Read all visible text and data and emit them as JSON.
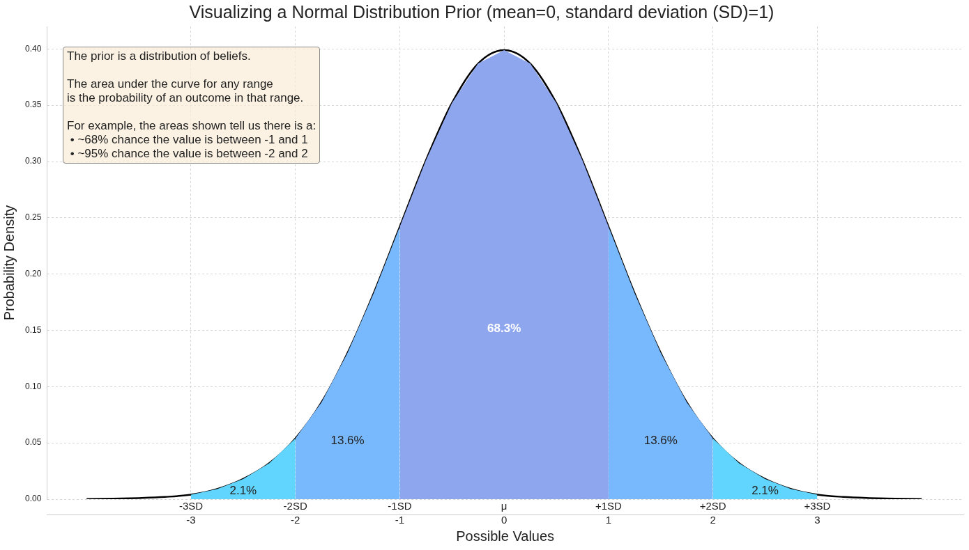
{
  "chart_data": {
    "type": "area",
    "title": "Visualizing a Normal Distribution Prior (mean=0, standard deviation (SD)=1)",
    "xlabel": "Possible Values",
    "ylabel": "Probability Density",
    "xlim": [
      -4.38,
      4.4
    ],
    "xticks": [
      -3,
      -2,
      -1,
      0,
      1,
      2,
      3
    ],
    "x2lim": [
      -4.38,
      4.4
    ],
    "x2ticks": [
      {
        "value": -3,
        "label": "-3SD"
      },
      {
        "value": -2,
        "label": "-2SD"
      },
      {
        "value": -1,
        "label": "-1SD"
      },
      {
        "value": 0,
        "label": "μ"
      },
      {
        "value": 1,
        "label": "+1SD"
      },
      {
        "value": 2,
        "label": "+2SD"
      },
      {
        "value": 3,
        "label": "+3SD"
      }
    ],
    "ylim": [
      0,
      0.42
    ],
    "yticks": [
      {
        "value": 0,
        "label": "0.00"
      },
      {
        "value": 0.05,
        "label": "0.05"
      },
      {
        "value": 0.1,
        "label": "0.10"
      },
      {
        "value": 0.15,
        "label": "0.15"
      },
      {
        "value": 0.2,
        "label": "0.20"
      },
      {
        "value": 0.25,
        "label": "0.25"
      },
      {
        "value": 0.3,
        "label": "0.30"
      },
      {
        "value": 0.35,
        "label": "0.35"
      },
      {
        "value": 0.4,
        "label": "0.40"
      }
    ],
    "grid": true,
    "series": [
      {
        "color": "#62d5fe",
        "x": [
          -3,
          -2.75,
          -2.5,
          -2.25,
          -2
        ],
        "values": [
          0.004,
          0.009,
          0.018,
          0.032,
          0.054
        ]
      },
      {
        "color": "#62d5fe",
        "x": [
          2,
          2.25,
          2.5,
          2.75,
          3
        ],
        "values": [
          0.054,
          0.032,
          0.018,
          0.009,
          0.004
        ]
      },
      {
        "color": "#78b9fe",
        "x": [
          -2,
          -1.75,
          -1.5,
          -1.25,
          -1
        ],
        "values": [
          0.054,
          0.086,
          0.13,
          0.183,
          0.242
        ]
      },
      {
        "color": "#78b9fe",
        "x": [
          1,
          1.25,
          1.5,
          1.75,
          2
        ],
        "values": [
          0.242,
          0.183,
          0.13,
          0.086,
          0.054
        ]
      },
      {
        "color": "#8ea6ee",
        "x": [
          -1,
          -0.75,
          -0.5,
          -0.25,
          0,
          0.25,
          0.5,
          0.75,
          1
        ],
        "values": [
          0.242,
          0.301,
          0.352,
          0.387,
          0.399,
          0.387,
          0.352,
          0.301,
          0.242
        ]
      },
      {
        "type": "line",
        "color": "#000000",
        "x": [
          -4,
          -3.75,
          -3.5,
          -3.25,
          -3,
          -2.75,
          -2.5,
          -2.25,
          -2,
          -1.75,
          -1.5,
          -1.25,
          -1,
          -0.75,
          -0.5,
          -0.25,
          0,
          0.25,
          0.5,
          0.75,
          1,
          1.25,
          1.5,
          1.75,
          2,
          2.25,
          2.5,
          2.75,
          3,
          3.25,
          3.5,
          3.75,
          4
        ],
        "values": [
          0.0001,
          0.0004,
          0.001,
          0.002,
          0.004,
          0.009,
          0.018,
          0.032,
          0.054,
          0.086,
          0.13,
          0.183,
          0.242,
          0.301,
          0.352,
          0.387,
          0.399,
          0.387,
          0.352,
          0.301,
          0.242,
          0.183,
          0.13,
          0.086,
          0.054,
          0.032,
          0.018,
          0.009,
          0.004,
          0.002,
          0.001,
          0.0004,
          0.0001
        ]
      }
    ],
    "annotations": [
      "2.1%",
      "2.1%",
      "13.6%",
      "13.6%",
      "68.3%",
      "The prior is a distribution of beliefs.\n\nThe area under the curve for any range\nis the probability of an outcome in that range.\n\nFor example, the areas shown tell us there is a:\n • ~68% chance the value is between -1 and 1\n • ~95% chance the value is between -2 and 2"
    ]
  }
}
